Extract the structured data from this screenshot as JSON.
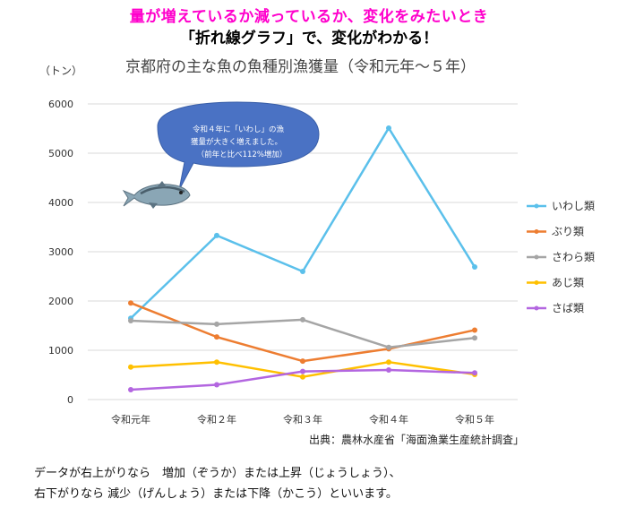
{
  "headline": {
    "line1": "量が増えているか減っているか、変化をみたいとき",
    "line2": "「折れ線グラフ」で、変化がわかる！"
  },
  "unit_label": "（トン）",
  "callout": {
    "line1": "令和４年に「いわし」の漁",
    "line2": "獲量が大きく増えました。",
    "line3": "（前年と比べ112%増加）"
  },
  "source": "出典：農林水産省「海面漁業生産統計調査」",
  "notes": {
    "line1": "データが右上がりなら　増加（ぞうか）または上昇（じょうしょう）、",
    "line2": "右下がりなら 減少（げんしょう）または下降（かこう）といいます。"
  },
  "colors": {
    "headline1": "#ff00cc",
    "bubble": "#4a72c4",
    "grid": "#d9d9d9"
  },
  "icons": {
    "fish": "fish-icon"
  },
  "chart_data": {
    "type": "line",
    "title": "京都府の主な魚の魚種別漁獲量（令和元年～５年）",
    "ylabel": "（トン）",
    "categories": [
      "令和元年",
      "令和２年",
      "令和３年",
      "令和４年",
      "令和５年"
    ],
    "ylim": [
      0,
      6000
    ],
    "yticks": [
      0,
      1000,
      2000,
      3000,
      4000,
      5000,
      6000
    ],
    "grid": true,
    "legend_position": "right",
    "series": [
      {
        "name": "いわし類",
        "color": "#5bc0eb",
        "values": [
          1650,
          3330,
          2600,
          5510,
          2690
        ]
      },
      {
        "name": "ぶり類",
        "color": "#ed7d31",
        "values": [
          1960,
          1270,
          780,
          1030,
          1410
        ]
      },
      {
        "name": "さわら類",
        "color": "#a5a5a5",
        "values": [
          1600,
          1530,
          1620,
          1060,
          1250
        ]
      },
      {
        "name": "あじ類",
        "color": "#ffc000",
        "values": [
          660,
          760,
          460,
          760,
          510
        ]
      },
      {
        "name": "さば類",
        "color": "#b366e0",
        "values": [
          200,
          300,
          570,
          600,
          540
        ]
      }
    ]
  }
}
